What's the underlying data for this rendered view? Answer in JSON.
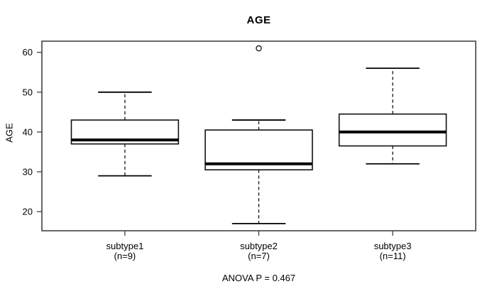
{
  "chart_data": {
    "type": "boxplot",
    "title": "AGE",
    "xlabel": "",
    "ylabel": "AGE",
    "ylim": [
      15.2,
      62.8
    ],
    "yticks": [
      20,
      30,
      40,
      50,
      60
    ],
    "xlim": [
      0.38,
      3.62
    ],
    "grid": false,
    "legend": "none",
    "categories": [
      "subtype1",
      "subtype2",
      "subtype3"
    ],
    "category_sublabels": [
      "(n=9)",
      "(n=7)",
      "(n=11)"
    ],
    "series": [
      {
        "name": "subtype1",
        "n": 9,
        "whisker_low": 29,
        "q1": 37,
        "median": 38,
        "q3": 43,
        "whisker_high": 50,
        "outliers": []
      },
      {
        "name": "subtype2",
        "n": 7,
        "whisker_low": 17,
        "q1": 30.5,
        "median": 32,
        "q3": 40.5,
        "whisker_high": 43,
        "outliers": [
          61
        ]
      },
      {
        "name": "subtype3",
        "n": 11,
        "whisker_low": 32,
        "q1": 36.5,
        "median": 40,
        "q3": 44.5,
        "whisker_high": 56,
        "outliers": []
      }
    ],
    "annotation": "ANOVA P = 0.467",
    "colors": {
      "stroke": "#000000",
      "box_fill": "#ffffff",
      "frame": "#4d4d4d",
      "background": "#ffffff"
    }
  }
}
